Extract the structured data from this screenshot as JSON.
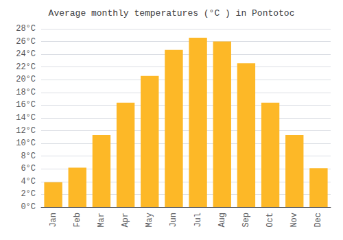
{
  "chart_data": {
    "type": "bar",
    "title": "Average monthly temperatures (°C ) in Pontotoc",
    "categories": [
      "Jan",
      "Feb",
      "Mar",
      "Apr",
      "May",
      "Jun",
      "Jul",
      "Aug",
      "Sep",
      "Oct",
      "Nov",
      "Dec"
    ],
    "values": [
      3.9,
      6.2,
      11.3,
      16.4,
      20.6,
      24.7,
      26.6,
      26.0,
      22.6,
      16.4,
      11.3,
      6.1
    ],
    "color": "#FDB827",
    "ylim": [
      0,
      28
    ],
    "yticks": [
      {
        "value": 0,
        "label": "0°C"
      },
      {
        "value": 2,
        "label": "2°C"
      },
      {
        "value": 4,
        "label": "4°C"
      },
      {
        "value": 6,
        "label": "6°C"
      },
      {
        "value": 8,
        "label": "8°C"
      },
      {
        "value": 10,
        "label": "10°C"
      },
      {
        "value": 12,
        "label": "12°C"
      },
      {
        "value": 14,
        "label": "14°C"
      },
      {
        "value": 16,
        "label": "16°C"
      },
      {
        "value": 18,
        "label": "18°C"
      },
      {
        "value": 20,
        "label": "20°C"
      },
      {
        "value": 22,
        "label": "22°C"
      },
      {
        "value": 24,
        "label": "24°C"
      },
      {
        "value": 26,
        "label": "26°C"
      },
      {
        "value": 28,
        "label": "28°C"
      }
    ],
    "grid": true
  }
}
